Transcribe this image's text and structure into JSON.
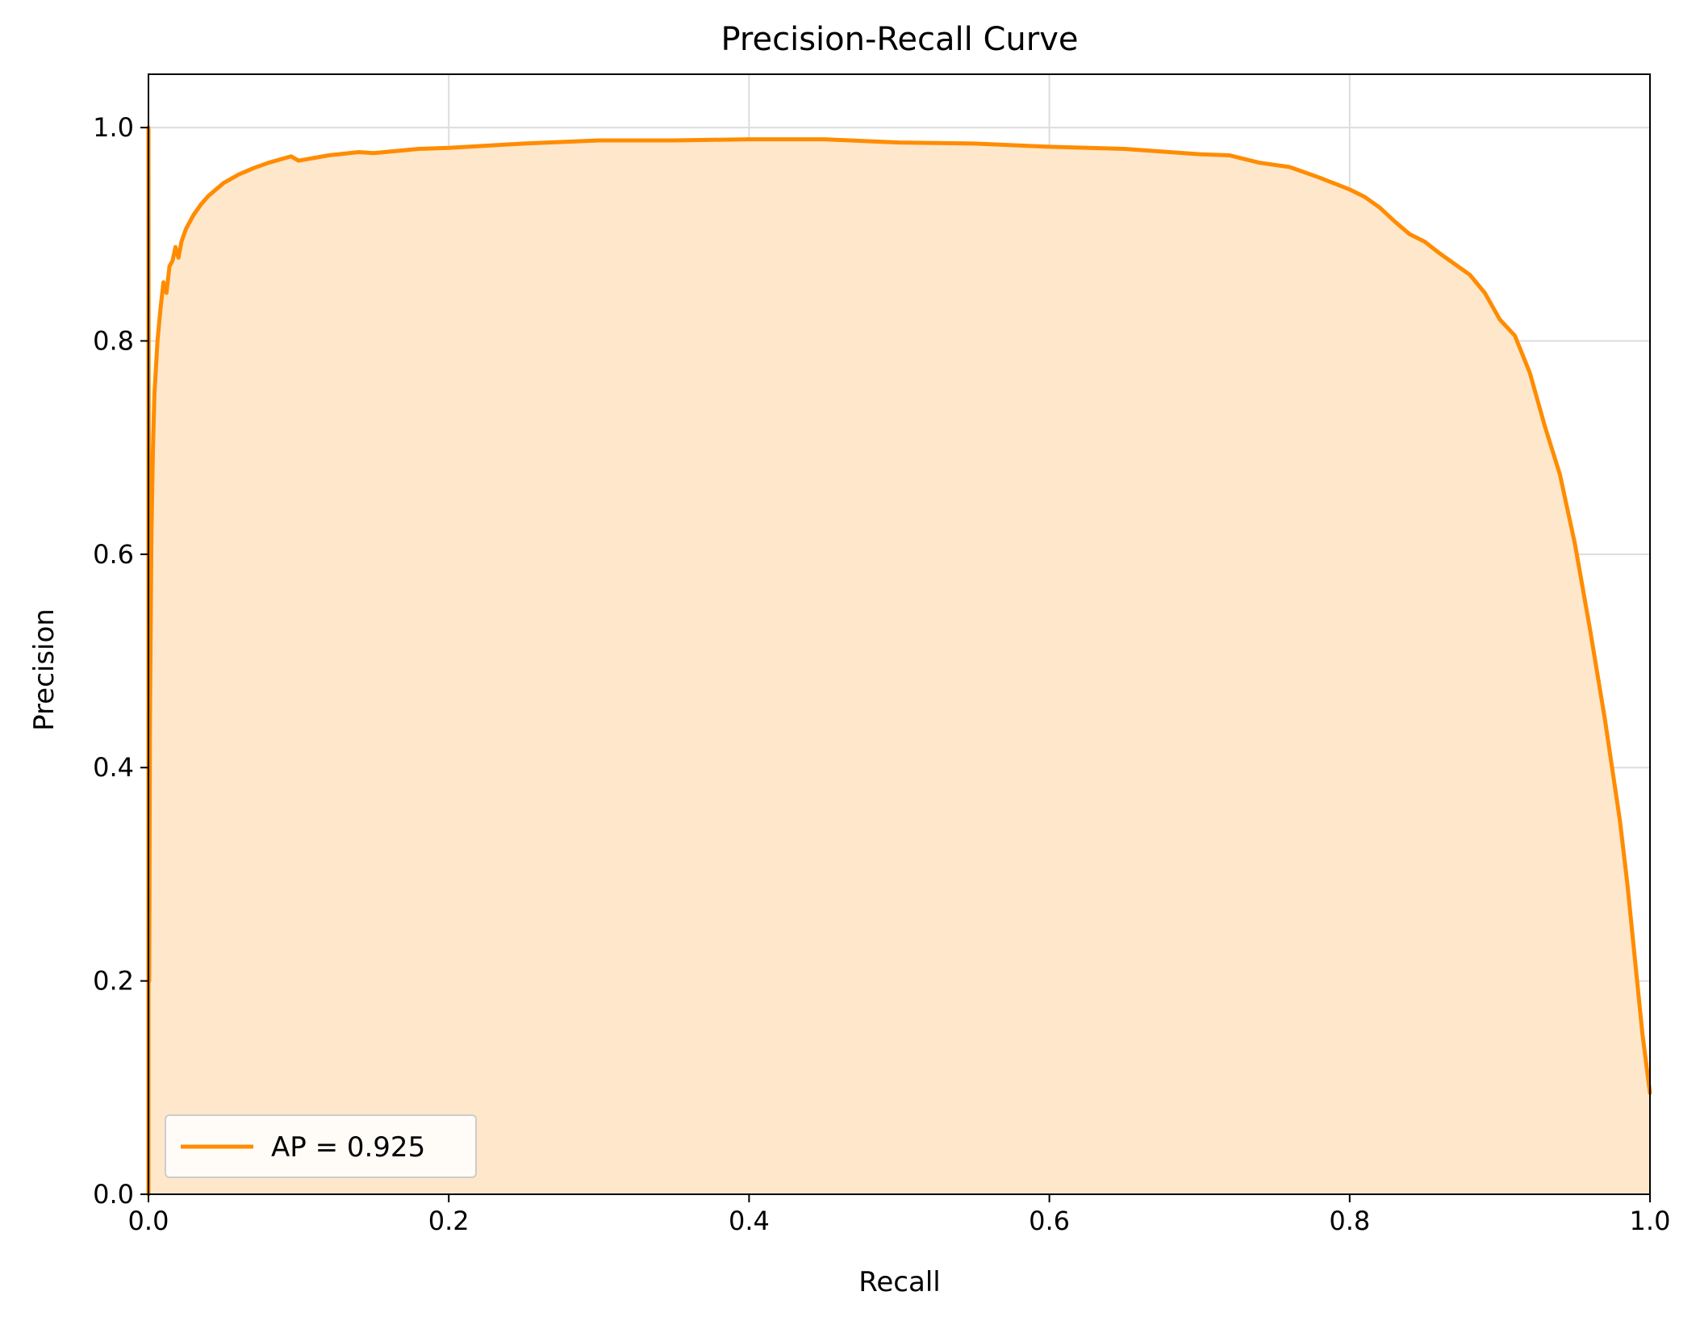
{
  "chart_data": {
    "type": "area",
    "title": "Precision-Recall Curve",
    "xlabel": "Recall",
    "ylabel": "Precision",
    "xlim": [
      0.0,
      1.0
    ],
    "ylim": [
      0.0,
      1.05
    ],
    "x_ticks": [
      0.0,
      0.2,
      0.4,
      0.6,
      0.8,
      1.0
    ],
    "x_tick_labels": [
      "0.0",
      "0.2",
      "0.4",
      "0.6",
      "0.8",
      "1.0"
    ],
    "y_ticks": [
      0.0,
      0.2,
      0.4,
      0.6,
      0.8,
      1.0
    ],
    "y_tick_labels": [
      "0.0",
      "0.2",
      "0.4",
      "0.6",
      "0.8",
      "1.0"
    ],
    "grid": true,
    "legend_position": "lower-left",
    "series": [
      {
        "name": "AP = 0.925",
        "color": "#ff8c00",
        "fill_color": "#ffe7cc",
        "points": [
          [
            0.0,
            1.0
          ],
          [
            0.0005,
            0.2
          ],
          [
            0.001,
            0.45
          ],
          [
            0.002,
            0.62
          ],
          [
            0.003,
            0.7
          ],
          [
            0.004,
            0.75
          ],
          [
            0.006,
            0.8
          ],
          [
            0.008,
            0.83
          ],
          [
            0.01,
            0.855
          ],
          [
            0.012,
            0.845
          ],
          [
            0.014,
            0.87
          ],
          [
            0.016,
            0.875
          ],
          [
            0.018,
            0.888
          ],
          [
            0.02,
            0.878
          ],
          [
            0.022,
            0.893
          ],
          [
            0.025,
            0.905
          ],
          [
            0.03,
            0.918
          ],
          [
            0.035,
            0.928
          ],
          [
            0.04,
            0.936
          ],
          [
            0.05,
            0.948
          ],
          [
            0.06,
            0.956
          ],
          [
            0.07,
            0.962
          ],
          [
            0.08,
            0.967
          ],
          [
            0.09,
            0.971
          ],
          [
            0.095,
            0.973
          ],
          [
            0.1,
            0.969
          ],
          [
            0.12,
            0.974
          ],
          [
            0.14,
            0.977
          ],
          [
            0.15,
            0.976
          ],
          [
            0.18,
            0.98
          ],
          [
            0.2,
            0.981
          ],
          [
            0.25,
            0.985
          ],
          [
            0.3,
            0.988
          ],
          [
            0.35,
            0.988
          ],
          [
            0.4,
            0.989
          ],
          [
            0.45,
            0.989
          ],
          [
            0.5,
            0.986
          ],
          [
            0.55,
            0.985
          ],
          [
            0.6,
            0.982
          ],
          [
            0.65,
            0.98
          ],
          [
            0.7,
            0.975
          ],
          [
            0.72,
            0.974
          ],
          [
            0.74,
            0.967
          ],
          [
            0.76,
            0.963
          ],
          [
            0.78,
            0.953
          ],
          [
            0.8,
            0.942
          ],
          [
            0.81,
            0.935
          ],
          [
            0.82,
            0.925
          ],
          [
            0.83,
            0.912
          ],
          [
            0.84,
            0.9
          ],
          [
            0.85,
            0.893
          ],
          [
            0.86,
            0.882
          ],
          [
            0.87,
            0.872
          ],
          [
            0.88,
            0.862
          ],
          [
            0.89,
            0.845
          ],
          [
            0.9,
            0.82
          ],
          [
            0.91,
            0.805
          ],
          [
            0.92,
            0.77
          ],
          [
            0.93,
            0.72
          ],
          [
            0.94,
            0.675
          ],
          [
            0.95,
            0.61
          ],
          [
            0.96,
            0.53
          ],
          [
            0.97,
            0.445
          ],
          [
            0.98,
            0.35
          ],
          [
            0.985,
            0.29
          ],
          [
            0.99,
            0.22
          ],
          [
            0.995,
            0.15
          ],
          [
            1.0,
            0.095
          ]
        ]
      }
    ]
  }
}
